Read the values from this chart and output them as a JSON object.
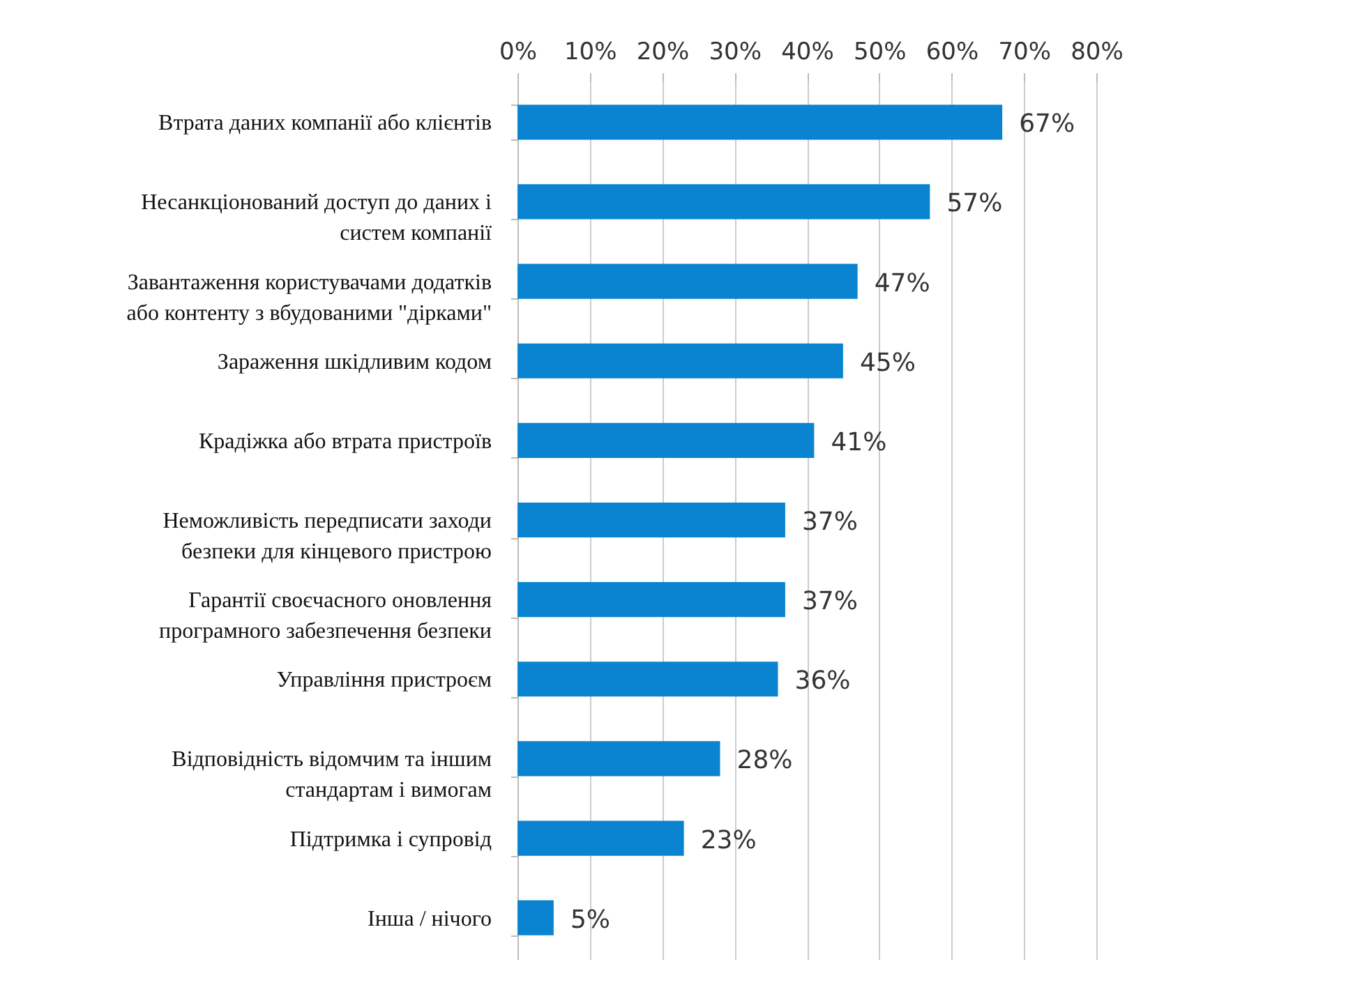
{
  "chart_data": {
    "type": "bar",
    "orientation": "horizontal",
    "categories": [
      "Втрата даних компанії або клієнтів",
      "Несанкціонований доступ до даних і\nсистем компанії",
      "Завантаження користувачами додатків\nабо контенту з вбудованими \"дірками\"",
      "Зараження шкідливим кодом",
      "Крадіжка або втрата пристроїв",
      "Неможливість передписати заходи\nбезпеки для кінцевого пристрою",
      "Гарантії своєчасного оновлення\nпрограмного забезпечення безпеки",
      "Управління пристроєм",
      "Відповідність відомчим та іншим\nстандартам і вимогам",
      "Підтримка і супровід",
      "Інша / нічого"
    ],
    "values": [
      67,
      57,
      47,
      45,
      41,
      37,
      37,
      36,
      28,
      23,
      5
    ],
    "value_labels": [
      "67%",
      "57%",
      "47%",
      "45%",
      "41%",
      "37%",
      "37%",
      "36%",
      "28%",
      "23%",
      "5%"
    ],
    "color": "#0a84d0",
    "xlim": [
      0,
      80
    ],
    "xticks": [
      {
        "value": 0,
        "label": "0%"
      },
      {
        "value": 10,
        "label": "10%"
      },
      {
        "value": 20,
        "label": "20%"
      },
      {
        "value": 30,
        "label": "30%"
      },
      {
        "value": 40,
        "label": "40%"
      },
      {
        "value": 50,
        "label": "50%"
      },
      {
        "value": 60,
        "label": "60%"
      },
      {
        "value": 70,
        "label": "70%"
      },
      {
        "value": 80,
        "label": "80%"
      }
    ],
    "grid": "x"
  }
}
